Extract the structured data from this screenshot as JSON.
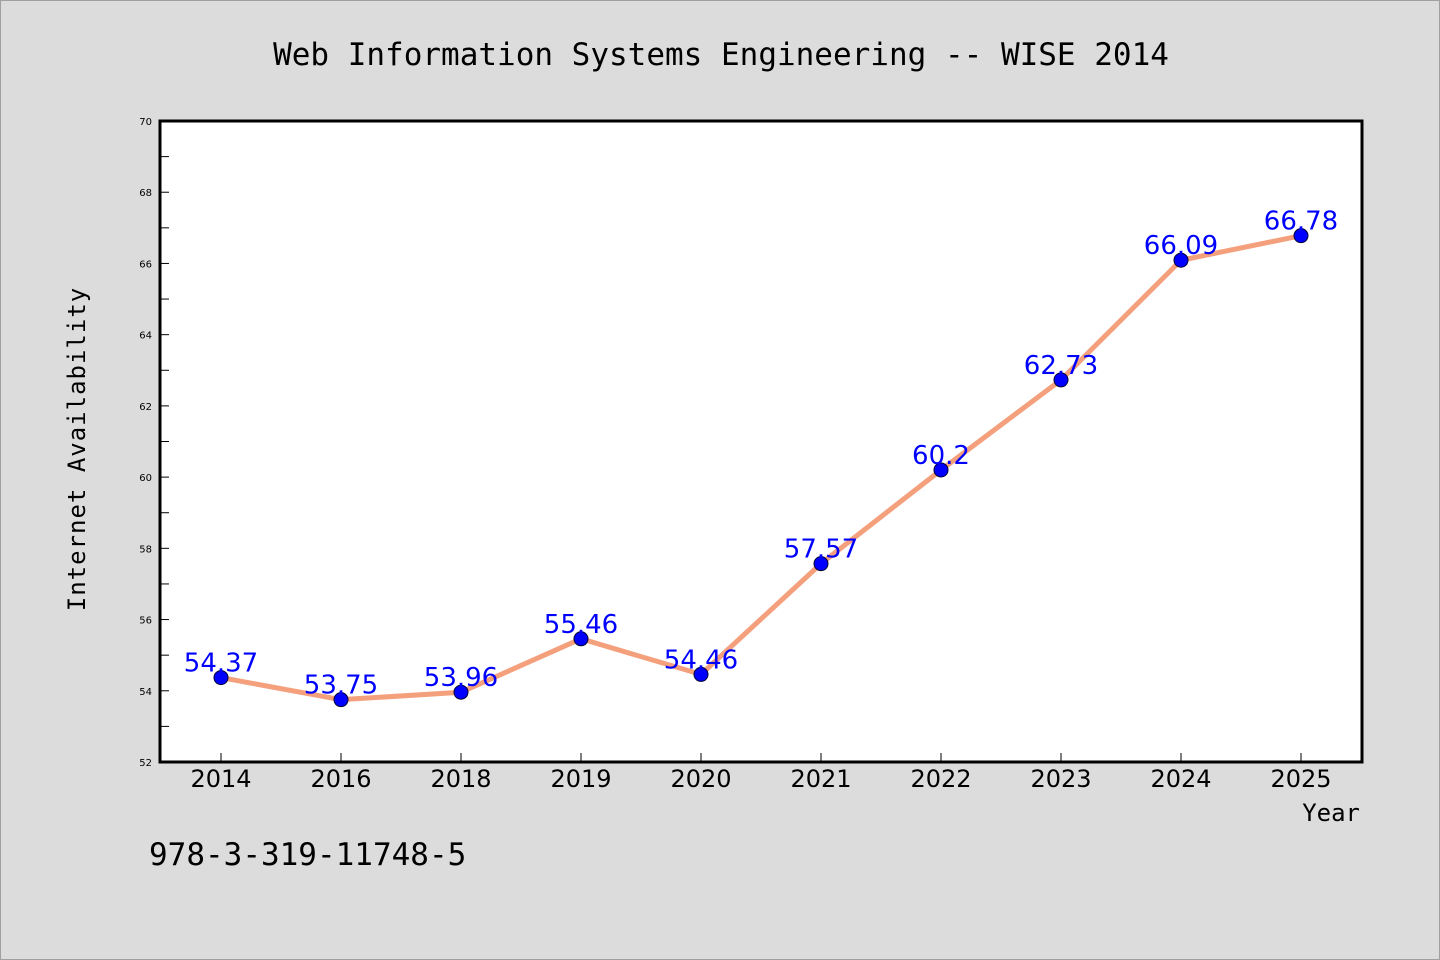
{
  "chart_data": {
    "type": "line",
    "title": "Web Information Systems Engineering -- WISE 2014",
    "xlabel": "Year",
    "ylabel": "Internet Availability",
    "categories": [
      "2014",
      "2016",
      "2018",
      "2019",
      "2020",
      "2021",
      "2022",
      "2023",
      "2024",
      "2025"
    ],
    "series": [
      {
        "values": [
          54.37,
          53.75,
          53.96,
          55.46,
          54.46,
          57.57,
          60.2,
          62.73,
          66.09,
          66.78
        ],
        "labels": [
          "54.37",
          "53.75",
          "53.96",
          "55.46",
          "54.46",
          "57.57",
          "60.2",
          "62.73",
          "66.09",
          "66.78"
        ]
      }
    ],
    "ylim": [
      52,
      70
    ],
    "yticks": [
      52,
      54,
      56,
      58,
      60,
      62,
      64,
      66,
      68,
      70
    ],
    "ytick_labels": [
      "52",
      "54",
      "56",
      "58",
      "60",
      "62",
      "64",
      "66",
      "68",
      "70"
    ],
    "grid": false,
    "legend": "none",
    "colors": {
      "line": "#f4a07c",
      "marker": "#0000ff",
      "label": "#0000ff",
      "plot_background": "#ffffff",
      "page_background": "#dcdcdc"
    }
  },
  "footnote": "978-3-319-11748-5"
}
